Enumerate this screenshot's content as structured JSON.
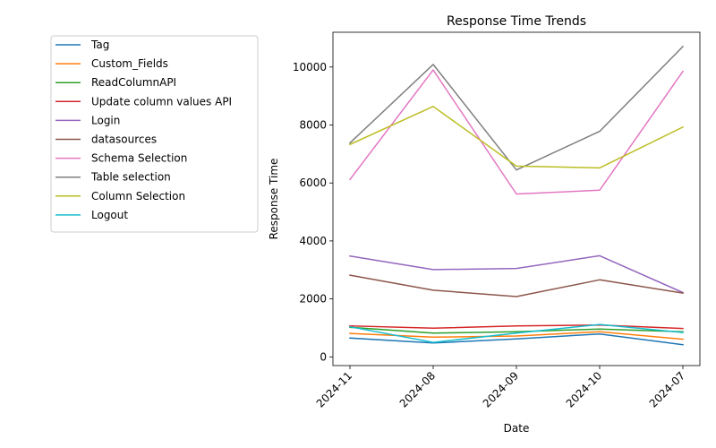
{
  "chart_data": {
    "type": "line",
    "title": "Response Time Trends",
    "xlabel": "Date",
    "ylabel": "Response Time",
    "categories": [
      "2024-11",
      "2024-08",
      "2024-09",
      "2024-10",
      "2024-07"
    ],
    "ylim": [
      -300,
      11200
    ],
    "yticks": [
      0,
      2000,
      4000,
      6000,
      8000,
      10000
    ],
    "legend_position": "outside-left",
    "grid": false,
    "series": [
      {
        "name": "Tag",
        "color": "#1f77b4",
        "values": [
          650,
          480,
          620,
          790,
          420
        ]
      },
      {
        "name": "Custom_Fields",
        "color": "#ff7f0e",
        "values": [
          810,
          680,
          720,
          870,
          610
        ]
      },
      {
        "name": "ReadColumnAPI",
        "color": "#2ca02c",
        "values": [
          1020,
          820,
          870,
          960,
          870
        ]
      },
      {
        "name": "Update column values API",
        "color": "#d62728",
        "values": [
          1070,
          990,
          1070,
          1100,
          980
        ]
      },
      {
        "name": "Login",
        "color": "#9467bd",
        "values": [
          3480,
          3010,
          3050,
          3490,
          2220
        ]
      },
      {
        "name": "datasources",
        "color": "#8c564b",
        "values": [
          2820,
          2300,
          2080,
          2660,
          2200
        ]
      },
      {
        "name": "Schema Selection",
        "color": "#e377c2",
        "values": [
          6120,
          9900,
          5620,
          5750,
          9850
        ]
      },
      {
        "name": "Table selection",
        "color": "#7f7f7f",
        "values": [
          7380,
          10090,
          6450,
          7780,
          10710
        ]
      },
      {
        "name": "Column Selection",
        "color": "#bcbd22",
        "values": [
          7330,
          8640,
          6580,
          6520,
          7930
        ]
      },
      {
        "name": "Logout",
        "color": "#17becf",
        "values": [
          1040,
          500,
          820,
          1120,
          840
        ]
      }
    ]
  }
}
